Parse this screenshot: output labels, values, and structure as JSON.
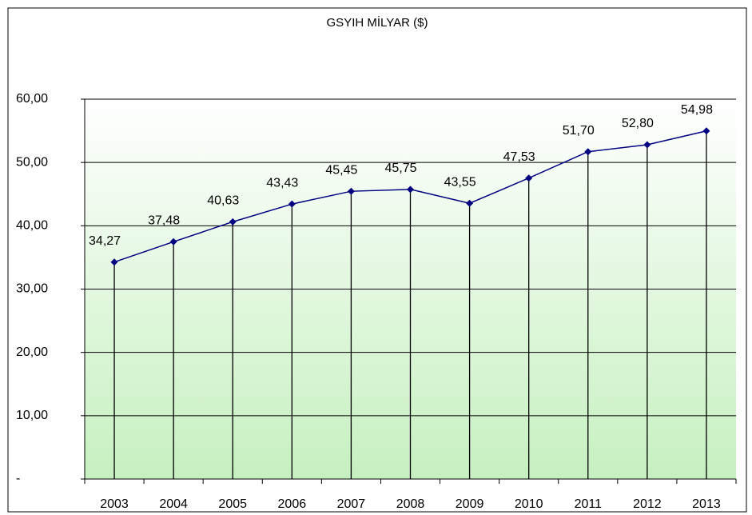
{
  "chart_data": {
    "type": "line",
    "title": "GSYIH MİLYAR ($)",
    "categories": [
      "2003",
      "2004",
      "2005",
      "2006",
      "2007",
      "2008",
      "2009",
      "2010",
      "2011",
      "2012",
      "2013"
    ],
    "series": [
      {
        "name": "GSYIH",
        "color": "#000080",
        "values": [
          34.27,
          37.48,
          40.63,
          43.43,
          45.45,
          45.75,
          43.55,
          47.53,
          51.7,
          52.8,
          54.98
        ],
        "value_labels": [
          "34,27",
          "37,48",
          "40,63",
          "43,43",
          "45,45",
          "45,75",
          "43,55",
          "47,53",
          "51,70",
          "52,80",
          "54,98"
        ]
      }
    ],
    "ylim": [
      0,
      60
    ],
    "yticks": [
      {
        "value": 0,
        "label": "-"
      },
      {
        "value": 10,
        "label": "10,00"
      },
      {
        "value": 20,
        "label": "20,00"
      },
      {
        "value": 30,
        "label": "30,00"
      },
      {
        "value": 40,
        "label": "40,00"
      },
      {
        "value": 50,
        "label": "50,00"
      },
      {
        "value": 60,
        "label": "60,00"
      }
    ],
    "grid": true,
    "drop_lines": true
  }
}
